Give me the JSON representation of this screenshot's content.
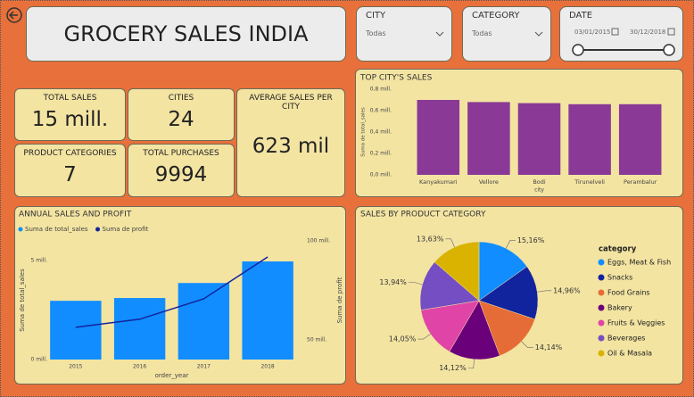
{
  "header": {
    "title": "GROCERY SALES INDIA"
  },
  "filters": [
    {
      "label": "CITY",
      "value": "Todas"
    },
    {
      "label": "CATEGORY",
      "value": "Todas"
    }
  ],
  "date_filter": {
    "label": "DATE",
    "start": "03/01/2015",
    "end": "30/12/2018"
  },
  "kpis": [
    {
      "label": "TOTAL SALES",
      "value": "15 mill."
    },
    {
      "label": "CITIES",
      "value": "24"
    },
    {
      "label": "AVERAGE SALES PER CITY",
      "value": "623 mil"
    },
    {
      "label": "PRODUCT CATEGORIES",
      "value": "7"
    },
    {
      "label": "TOTAL PURCHASES",
      "value": "9994"
    }
  ],
  "chart_data": [
    {
      "type": "bar",
      "title": "TOP CITY'S SALES",
      "y_label": "Suma de total_sales",
      "x_label": "city",
      "categories": [
        "Kanyakumari",
        "Vellore",
        "Bodi",
        "Tirunelveli",
        "Perambalur"
      ],
      "values": [
        0.7,
        0.68,
        0.67,
        0.66,
        0.66
      ],
      "color": "#8a3a96",
      "ylim": [
        0,
        0.8
      ],
      "yticks": [
        {
          "value": 0,
          "label": "0,0 mill."
        },
        {
          "value": 0.2,
          "label": "0,2 mill."
        },
        {
          "value": 0.4,
          "label": "0,4 mill."
        },
        {
          "value": 0.6,
          "label": "0,6 mill."
        },
        {
          "value": 0.8,
          "label": "0,8 mill."
        }
      ]
    },
    {
      "type": "combo",
      "title": "ANNUAL SALES AND PROFIT",
      "x_label": "order_year",
      "y_label": "Suma de total_sales",
      "y2_label": "Suma de profit",
      "categories": [
        "2015",
        "2016",
        "2017",
        "2018"
      ],
      "series": [
        {
          "name": "Suma de total_sales",
          "color": "#118dff",
          "values": [
            2.97,
            3.11,
            3.87,
            4.96
          ]
        },
        {
          "name": "Suma de profit",
          "color": "#12239e",
          "values": [
            56.3,
            60.4,
            70.7,
            91.9
          ],
          "axis": "y2"
        }
      ],
      "ylim": [
        0,
        6
      ],
      "yticks": [
        {
          "value": 0,
          "label": "0 mill."
        },
        {
          "value": 5,
          "label": "5 mill."
        }
      ],
      "y2lim": [
        40,
        100
      ],
      "y2ticks": [
        {
          "value": 50,
          "label": "50 mill."
        },
        {
          "value": 100,
          "label": "100 mill."
        }
      ]
    },
    {
      "type": "pie",
      "title": "SALES BY PRODUCT CATEGORY",
      "legend_title": "category",
      "categories": [
        "Eggs, Meat & Fish",
        "Snacks",
        "Food Grains",
        "Bakery",
        "Fruits & Veggies",
        "Beverages",
        "Oil & Masala"
      ],
      "values": [
        15.16,
        14.96,
        14.14,
        14.12,
        14.05,
        13.94,
        13.63
      ],
      "value_labels": [
        "15,16%",
        "14,96%",
        "14,14%",
        "14,12%",
        "14,05%",
        "13,94%",
        "13,63%"
      ],
      "colors": [
        "#118dff",
        "#12239e",
        "#e66c37",
        "#6b007b",
        "#e044a7",
        "#744ec2",
        "#d9b300"
      ]
    }
  ]
}
